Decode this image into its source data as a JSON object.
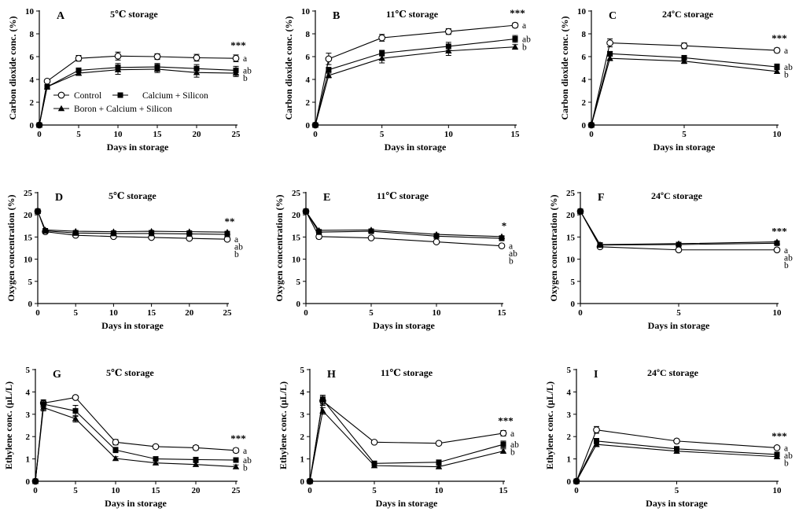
{
  "legend": {
    "items": [
      {
        "key": "control",
        "label": "Control",
        "marker": "circle"
      },
      {
        "key": "cs",
        "label": "Calcium + Silicon",
        "marker": "square"
      },
      {
        "key": "bcs",
        "label": "Boron + Calcium + Silicon",
        "marker": "triangle"
      }
    ]
  },
  "chart_data": [
    {
      "id": "A",
      "type": "line",
      "letter": "A",
      "title": "5℃ storage",
      "xlabel": "Days in storage",
      "ylabel": "Carbon dioxide conc. (%)",
      "xlim": [
        0,
        25
      ],
      "xticks": [
        0,
        5,
        10,
        15,
        20,
        25
      ],
      "ylim": [
        0,
        10
      ],
      "yticks": [
        0,
        2,
        4,
        6,
        8,
        10
      ],
      "x": [
        0,
        1,
        5,
        10,
        15,
        20,
        25
      ],
      "series": [
        {
          "name": "Control",
          "marker": "circle",
          "values": [
            0,
            3.85,
            5.85,
            6.05,
            6.0,
            5.9,
            5.85
          ],
          "errors": [
            0,
            0.1,
            0.25,
            0.35,
            0.25,
            0.3,
            0.3
          ]
        },
        {
          "name": "Calcium + Silicon",
          "marker": "square",
          "values": [
            0,
            3.35,
            4.8,
            5.05,
            5.1,
            4.95,
            4.8
          ],
          "errors": [
            0,
            0.1,
            0.2,
            0.35,
            0.3,
            0.35,
            0.35
          ]
        },
        {
          "name": "Boron + Calcium + Silicon",
          "marker": "triangle",
          "values": [
            0,
            3.35,
            4.55,
            4.85,
            4.9,
            4.6,
            4.55
          ],
          "errors": [
            0,
            0.1,
            0.2,
            0.4,
            0.3,
            0.4,
            0.3
          ]
        }
      ],
      "significance": "***",
      "sig_letters": [
        "a",
        "ab",
        "b"
      ]
    },
    {
      "id": "B",
      "type": "line",
      "letter": "B",
      "title": "11℃ storage",
      "xlabel": "Days in storage",
      "ylabel": "Carbon dioxide conc. (%)",
      "xlim": [
        0,
        15
      ],
      "xticks": [
        0,
        5,
        10,
        15
      ],
      "ylim": [
        0,
        10
      ],
      "yticks": [
        0,
        2,
        4,
        6,
        8,
        10
      ],
      "x": [
        0,
        1,
        5,
        10,
        15
      ],
      "series": [
        {
          "name": "Control",
          "marker": "circle",
          "values": [
            0,
            5.8,
            7.65,
            8.2,
            8.75
          ],
          "errors": [
            0,
            0.5,
            0.3,
            0.25,
            0.2
          ]
        },
        {
          "name": "Calcium + Silicon",
          "marker": "square",
          "values": [
            0,
            4.85,
            6.3,
            6.9,
            7.55
          ],
          "errors": [
            0,
            0.2,
            0.25,
            0.35,
            0.3
          ]
        },
        {
          "name": "Boron + Calcium + Silicon",
          "marker": "triangle",
          "values": [
            0,
            4.35,
            5.85,
            6.5,
            6.85
          ],
          "errors": [
            0,
            0.2,
            0.4,
            0.4,
            0.2
          ]
        }
      ],
      "significance": "***",
      "sig_letters": [
        "a",
        "ab",
        "b"
      ]
    },
    {
      "id": "C",
      "type": "line",
      "letter": "C",
      "title": "24ºC storage",
      "xlabel": "Days in storage",
      "ylabel": "Carbon dioxide conc. (%)",
      "xlim": [
        0,
        10
      ],
      "xticks": [
        0,
        5,
        10
      ],
      "ylim": [
        0,
        10
      ],
      "yticks": [
        0,
        2,
        4,
        6,
        8,
        10
      ],
      "x": [
        0,
        1,
        5,
        10
      ],
      "series": [
        {
          "name": "Control",
          "marker": "circle",
          "values": [
            0,
            7.2,
            6.95,
            6.55
          ],
          "errors": [
            0,
            0.35,
            0.25,
            0.2
          ]
        },
        {
          "name": "Calcium + Silicon",
          "marker": "square",
          "values": [
            0,
            6.25,
            5.9,
            5.1
          ],
          "errors": [
            0,
            0.2,
            0.2,
            0.25
          ]
        },
        {
          "name": "Boron + Calcium + Silicon",
          "marker": "triangle",
          "values": [
            0,
            5.85,
            5.6,
            4.7
          ],
          "errors": [
            0,
            0.2,
            0.2,
            0.15
          ]
        }
      ],
      "significance": "***",
      "sig_letters": [
        "a",
        "ab",
        "b"
      ]
    },
    {
      "id": "D",
      "type": "line",
      "letter": "D",
      "title": "5℃ storage",
      "xlabel": "Days in storage",
      "ylabel": "Oxygen concentration (%)",
      "xlim": [
        0,
        25
      ],
      "xticks": [
        0,
        5,
        10,
        15,
        20,
        25
      ],
      "ylim": [
        0,
        25
      ],
      "yticks": [
        0,
        5,
        10,
        15,
        20,
        25
      ],
      "x": [
        0,
        1,
        5,
        10,
        15,
        20,
        25
      ],
      "series": [
        {
          "name": "Control",
          "marker": "circle",
          "values": [
            20.8,
            16.2,
            15.4,
            15.1,
            14.9,
            14.7,
            14.5
          ],
          "errors": [
            0,
            0.2,
            0.2,
            0.2,
            0.2,
            0.2,
            0.2
          ]
        },
        {
          "name": "Calcium + Silicon",
          "marker": "square",
          "values": [
            20.8,
            16.4,
            15.9,
            15.8,
            15.8,
            15.7,
            15.6
          ],
          "errors": [
            0,
            0.2,
            0.2,
            0.2,
            0.2,
            0.2,
            0.2
          ]
        },
        {
          "name": "Boron + Calcium + Silicon",
          "marker": "triangle",
          "values": [
            20.8,
            16.6,
            16.3,
            16.2,
            16.3,
            16.2,
            16.1
          ],
          "errors": [
            0,
            0.2,
            0.2,
            0.2,
            0.2,
            0.2,
            0.2
          ]
        }
      ],
      "significance": "**",
      "sig_letters": [
        "a",
        "ab",
        "b"
      ]
    },
    {
      "id": "E",
      "type": "line",
      "letter": "E",
      "title": "11℃ storage",
      "xlabel": "Days in storage",
      "ylabel": "Oxygen concentration (%)",
      "xlim": [
        0,
        15
      ],
      "xticks": [
        0,
        5,
        10,
        15
      ],
      "ylim": [
        0,
        25
      ],
      "yticks": [
        0,
        5,
        10,
        15,
        20,
        25
      ],
      "x": [
        0,
        1,
        5,
        10,
        15
      ],
      "series": [
        {
          "name": "Control",
          "marker": "circle",
          "values": [
            20.8,
            15.1,
            14.8,
            13.9,
            13.0
          ],
          "errors": [
            0,
            0.5,
            0.3,
            0.3,
            0.3
          ]
        },
        {
          "name": "Calcium + Silicon",
          "marker": "square",
          "values": [
            20.8,
            16.1,
            16.3,
            15.2,
            14.7
          ],
          "errors": [
            0,
            0.3,
            0.3,
            0.3,
            0.3
          ]
        },
        {
          "name": "Boron + Calcium + Silicon",
          "marker": "triangle",
          "values": [
            20.8,
            16.5,
            16.6,
            15.6,
            15.1
          ],
          "errors": [
            0,
            0.2,
            0.2,
            0.2,
            0.2
          ]
        }
      ],
      "significance": "*",
      "sig_letters": [
        "a",
        "ab",
        "b"
      ]
    },
    {
      "id": "F",
      "type": "line",
      "letter": "F",
      "title": "24ºC storage",
      "xlabel": "Days in storage",
      "ylabel": "Oxygen concentration (%)",
      "xlim": [
        0,
        10
      ],
      "xticks": [
        0,
        5,
        10
      ],
      "ylim": [
        0,
        25
      ],
      "yticks": [
        0,
        5,
        10,
        15,
        20,
        25
      ],
      "x": [
        0,
        1,
        5,
        10
      ],
      "series": [
        {
          "name": "Control",
          "marker": "circle",
          "values": [
            20.8,
            12.8,
            12.1,
            12.1
          ],
          "errors": [
            0,
            0.2,
            0.2,
            0.2
          ]
        },
        {
          "name": "Calcium + Silicon",
          "marker": "square",
          "values": [
            20.8,
            13.2,
            13.3,
            13.6
          ],
          "errors": [
            0,
            0.2,
            0.2,
            0.2
          ]
        },
        {
          "name": "Boron + Calcium + Silicon",
          "marker": "triangle",
          "values": [
            20.8,
            13.3,
            13.5,
            13.9
          ],
          "errors": [
            0,
            0.2,
            0.2,
            0.2
          ]
        }
      ],
      "significance": "***",
      "sig_letters": [
        "a",
        "ab",
        "b"
      ]
    },
    {
      "id": "G",
      "type": "line",
      "letter": "G",
      "title": "5℃ storage",
      "xlabel": "Days in storage",
      "ylabel": "Ethylene conc. (µL/L)",
      "xlim": [
        0,
        25
      ],
      "xticks": [
        0,
        5,
        10,
        15,
        20,
        25
      ],
      "ylim": [
        0,
        5
      ],
      "yticks": [
        0,
        1,
        2,
        3,
        4,
        5
      ],
      "x": [
        0,
        1,
        5,
        10,
        15,
        20,
        25
      ],
      "series": [
        {
          "name": "Control",
          "marker": "circle",
          "values": [
            0,
            3.5,
            3.75,
            1.75,
            1.55,
            1.5,
            1.38
          ],
          "errors": [
            0,
            0.15,
            0.08,
            0.12,
            0.08,
            0.1,
            0.1
          ]
        },
        {
          "name": "Calcium + Silicon",
          "marker": "square",
          "values": [
            0,
            3.45,
            3.15,
            1.4,
            1.0,
            0.97,
            0.95
          ],
          "errors": [
            0,
            0.15,
            0.25,
            0.12,
            0.08,
            0.08,
            0.08
          ]
        },
        {
          "name": "Boron + Calcium + Silicon",
          "marker": "triangle",
          "values": [
            0,
            3.3,
            2.8,
            1.02,
            0.82,
            0.75,
            0.65
          ],
          "errors": [
            0,
            0.15,
            0.15,
            0.08,
            0.08,
            0.08,
            0.08
          ]
        }
      ],
      "significance": "***",
      "sig_letters": [
        "a",
        "ab",
        "b"
      ]
    },
    {
      "id": "H",
      "type": "line",
      "letter": "H",
      "title": "11℃ storage",
      "xlabel": "Days in storage",
      "ylabel": "Ethylene conc. (µL/L)",
      "xlim": [
        0,
        15
      ],
      "xticks": [
        0,
        5,
        10,
        15
      ],
      "ylim": [
        0,
        5
      ],
      "yticks": [
        0,
        1,
        2,
        3,
        4,
        5
      ],
      "x": [
        0,
        1,
        5,
        10,
        15
      ],
      "series": [
        {
          "name": "Control",
          "marker": "circle",
          "values": [
            0,
            3.6,
            1.75,
            1.7,
            2.15
          ],
          "errors": [
            0,
            0.2,
            0.06,
            0.08,
            0.12
          ]
        },
        {
          "name": "Calcium + Silicon",
          "marker": "square",
          "values": [
            0,
            3.65,
            0.8,
            0.85,
            1.65
          ],
          "errors": [
            0,
            0.2,
            0.08,
            0.08,
            0.15
          ]
        },
        {
          "name": "Boron + Calcium + Silicon",
          "marker": "triangle",
          "values": [
            0,
            3.15,
            0.7,
            0.65,
            1.35
          ],
          "errors": [
            0,
            0.15,
            0.06,
            0.06,
            0.1
          ]
        }
      ],
      "significance": "***",
      "sig_letters": [
        "a",
        "ab",
        "b"
      ]
    },
    {
      "id": "I",
      "type": "line",
      "letter": "I",
      "title": "24ºC storage",
      "xlabel": "Days in storage",
      "ylabel": "Ethylene conc. (µL/L)",
      "xlim": [
        0,
        10
      ],
      "xticks": [
        0,
        5,
        10
      ],
      "ylim": [
        0,
        5
      ],
      "yticks": [
        0,
        1,
        2,
        3,
        4,
        5
      ],
      "x": [
        0,
        1,
        5,
        10
      ],
      "series": [
        {
          "name": "Control",
          "marker": "circle",
          "values": [
            0,
            2.3,
            1.8,
            1.5
          ],
          "errors": [
            0,
            0.15,
            0.08,
            0.08
          ]
        },
        {
          "name": "Calcium + Silicon",
          "marker": "square",
          "values": [
            0,
            1.8,
            1.45,
            1.2
          ],
          "errors": [
            0,
            0.12,
            0.1,
            0.1
          ]
        },
        {
          "name": "Boron + Calcium + Silicon",
          "marker": "triangle",
          "values": [
            0,
            1.65,
            1.35,
            1.1
          ],
          "errors": [
            0,
            0.1,
            0.1,
            0.08
          ]
        }
      ],
      "significance": "***",
      "sig_letters": [
        "a",
        "ab",
        "b"
      ]
    }
  ]
}
